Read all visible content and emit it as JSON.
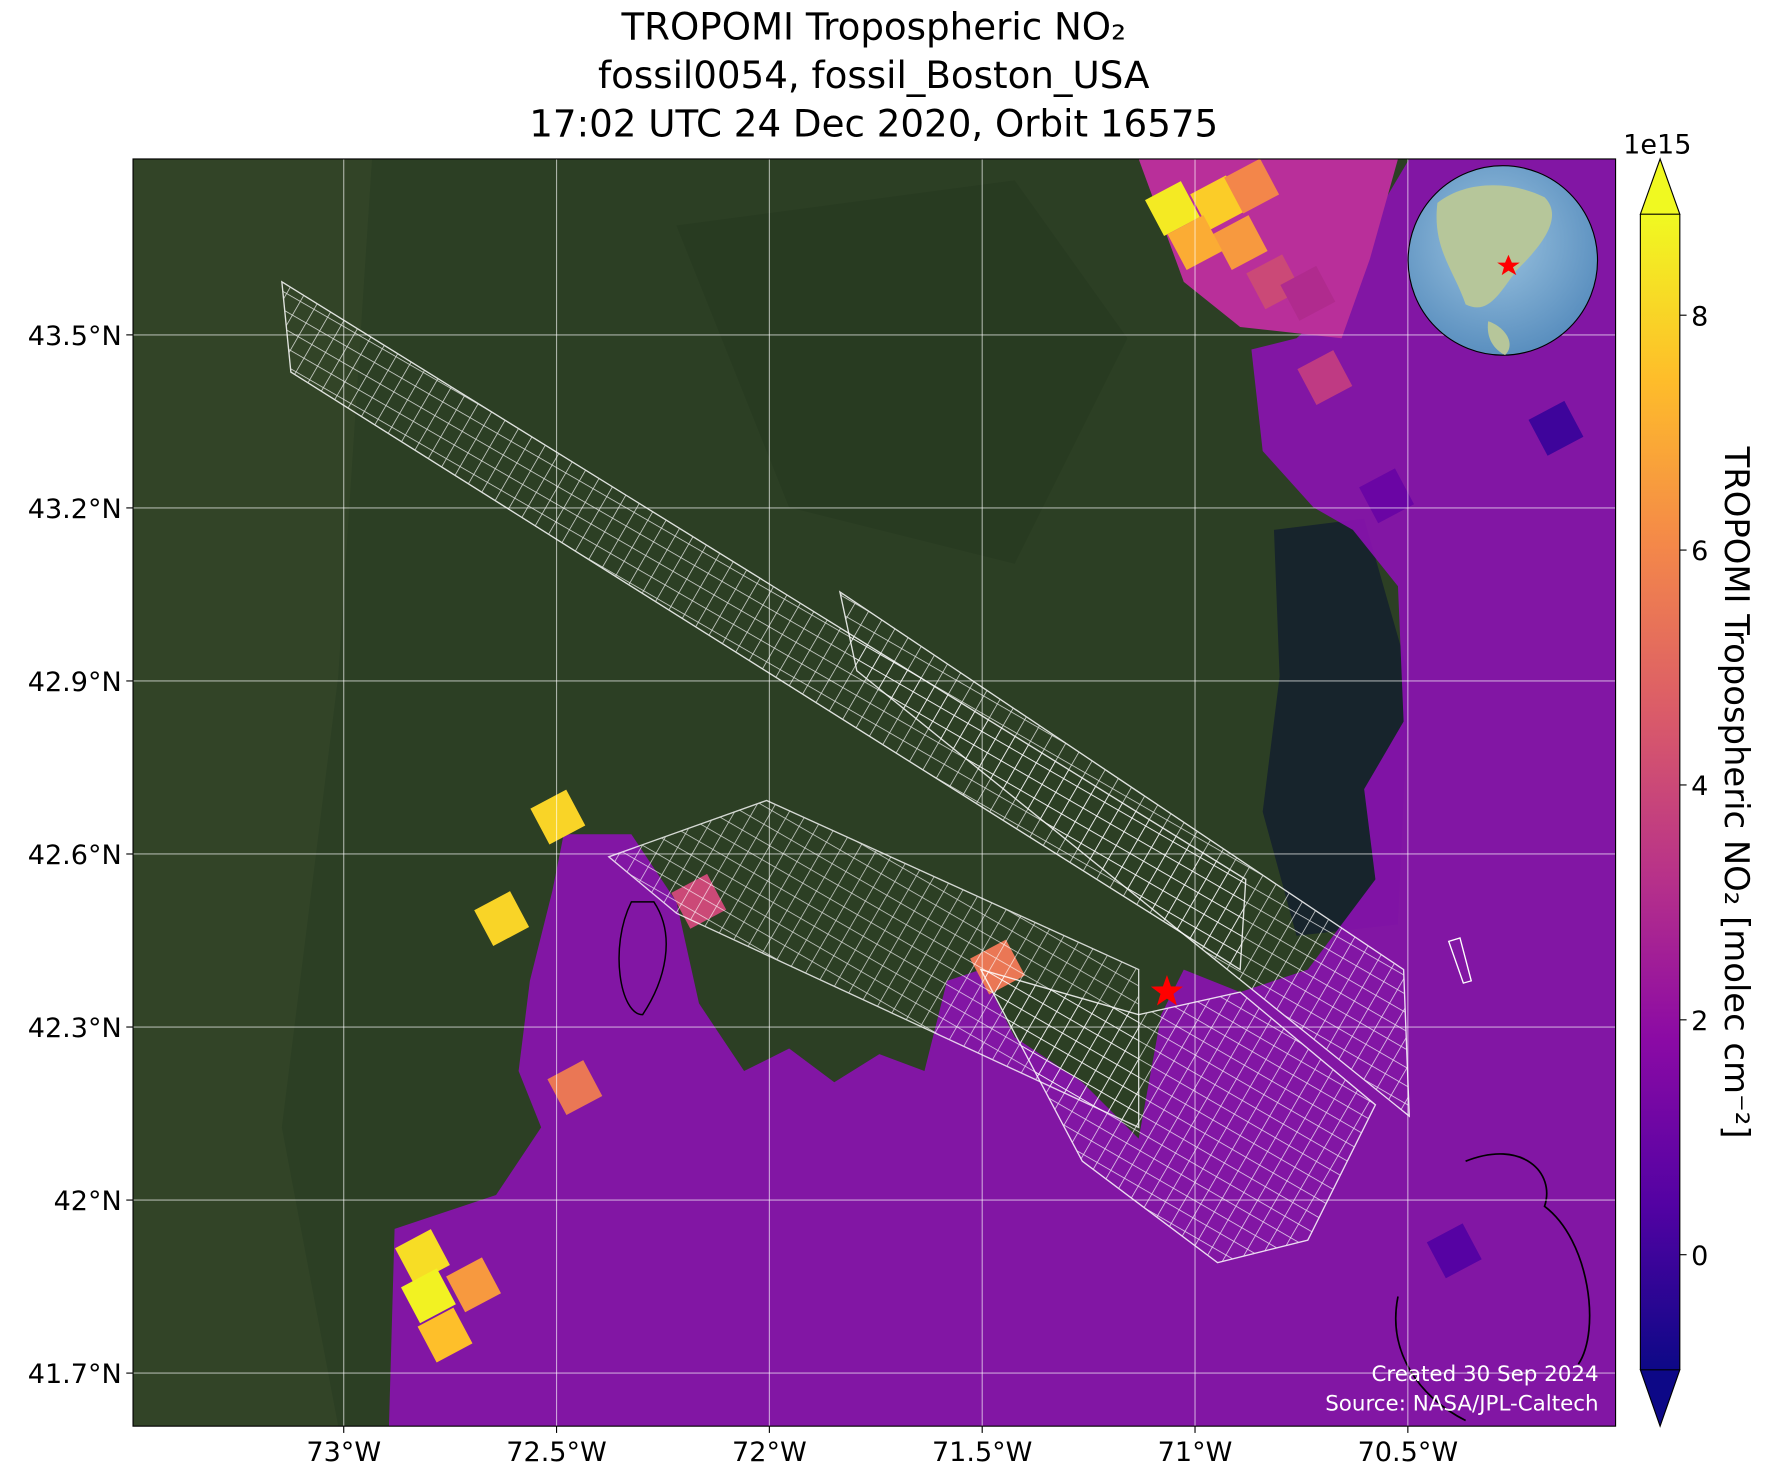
{
  "chart_data": {
    "type": "map",
    "title": [
      "TROPOMI Tropospheric NO₂",
      "fossil0054, fossil_Boston_USA",
      "17:02 UTC 24 Dec 2020, Orbit 16575"
    ],
    "xlim": [
      -73.495,
      -70.012
    ],
    "ylim": [
      41.608,
      43.805
    ],
    "xticks": [
      {
        "value": -73,
        "label": "73°W"
      },
      {
        "value": -72.5,
        "label": "72.5°W"
      },
      {
        "value": -72,
        "label": "72°W"
      },
      {
        "value": -71.5,
        "label": "71.5°W"
      },
      {
        "value": -71,
        "label": "71°W"
      },
      {
        "value": -70.5,
        "label": "70.5°W"
      }
    ],
    "yticks": [
      {
        "value": 41.7,
        "label": "41.7°N"
      },
      {
        "value": 42,
        "label": "42°N"
      },
      {
        "value": 42.3,
        "label": "42.3°N"
      },
      {
        "value": 42.6,
        "label": "42.6°N"
      },
      {
        "value": 42.9,
        "label": "42.9°N"
      },
      {
        "value": 43.2,
        "label": "43.2°N"
      },
      {
        "value": 43.5,
        "label": "43.5°N"
      }
    ],
    "grid": true,
    "site": {
      "lon": -71.066,
      "lat": 42.361,
      "color": "#ff0000"
    },
    "pixels": {
      "lon": [
        -71.053,
        -70.947,
        -70.867,
        -70.894,
        -71.0,
        -70.815,
        -70.735,
        -72.497,
        -72.629,
        -72.815,
        -72.801,
        -72.762,
        -72.695,
        -72.457,
        -71.464,
        -72.166,
        -70.695,
        -70.55,
        -70.152,
        -70.391
      ],
      "lat": [
        43.719,
        43.729,
        43.758,
        43.66,
        43.66,
        43.592,
        43.572,
        42.664,
        42.488,
        41.902,
        41.834,
        41.766,
        41.853,
        42.195,
        42.404,
        42.518,
        43.426,
        43.221,
        43.338,
        41.912
      ],
      "values": [
        8.5,
        7.8,
        6,
        6.5,
        7,
        4,
        3,
        8,
        8,
        8.2,
        8.7,
        7.5,
        6.5,
        5.5,
        5.5,
        4,
        3.5,
        1,
        0,
        0.5
      ]
    },
    "colorbar": {
      "label": "TROPOMI Tropospheric NO₂ [molec cm⁻²]",
      "exponent": "1e15",
      "colormap": "plasma",
      "lim": [
        -0.98,
        8.86
      ],
      "ticks": [
        0,
        2,
        4,
        6,
        8
      ]
    },
    "footer": [
      "Created 30 Sep 2024",
      "Source: NASA/JPL-Caltech"
    ]
  }
}
